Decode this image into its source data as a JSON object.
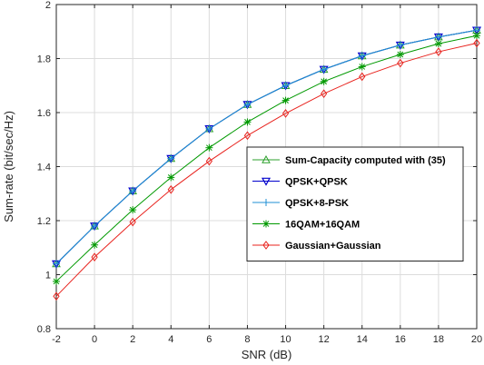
{
  "chart_data": {
    "type": "line",
    "xlabel": "SNR (dB)",
    "ylabel": "Sum-rate (bit/sec/Hz)",
    "xlim": [
      -2,
      20
    ],
    "ylim": [
      0.8,
      2.0
    ],
    "xticks": [
      -2,
      0,
      2,
      4,
      6,
      8,
      10,
      12,
      14,
      16,
      18,
      20
    ],
    "yticks": [
      0.8,
      1.0,
      1.2,
      1.4,
      1.6,
      1.8,
      2.0
    ],
    "xtick_labels": [
      "-2",
      "0",
      "2",
      "4",
      "6",
      "8",
      "10",
      "12",
      "14",
      "16",
      "18",
      "20"
    ],
    "ytick_labels": [
      "0.8",
      "1",
      "1.2",
      "1.4",
      "1.6",
      "1.8",
      "2"
    ],
    "grid": true,
    "legend_position": "center-right",
    "x": [
      -2,
      0,
      2,
      4,
      6,
      8,
      10,
      12,
      14,
      16,
      18,
      20
    ],
    "series": [
      {
        "name": "Sum-Capacity computed with (35)",
        "color": "#2ca02c",
        "marker": "triangle-up",
        "values": [
          1.04,
          1.18,
          1.31,
          1.43,
          1.54,
          1.63,
          1.7,
          1.76,
          1.81,
          1.85,
          1.88,
          1.905
        ]
      },
      {
        "name": "QPSK+QPSK",
        "color": "#0000cc",
        "marker": "triangle-down",
        "values": [
          1.04,
          1.18,
          1.31,
          1.43,
          1.54,
          1.63,
          1.7,
          1.76,
          1.81,
          1.85,
          1.88,
          1.905
        ]
      },
      {
        "name": "QPSK+8-PSK",
        "color": "#1f8fd6",
        "marker": "plus",
        "values": [
          1.04,
          1.18,
          1.31,
          1.43,
          1.54,
          1.63,
          1.7,
          1.76,
          1.81,
          1.85,
          1.88,
          1.905
        ]
      },
      {
        "name": "16QAM+16QAM",
        "color": "#009900",
        "marker": "asterisk",
        "values": [
          0.975,
          1.11,
          1.24,
          1.36,
          1.47,
          1.565,
          1.645,
          1.715,
          1.77,
          1.815,
          1.855,
          1.885
        ]
      },
      {
        "name": "Gaussian+Gaussian",
        "color": "#e8231e",
        "marker": "diamond",
        "values": [
          0.92,
          1.065,
          1.195,
          1.315,
          1.42,
          1.515,
          1.597,
          1.67,
          1.733,
          1.783,
          1.825,
          1.857
        ]
      }
    ]
  }
}
